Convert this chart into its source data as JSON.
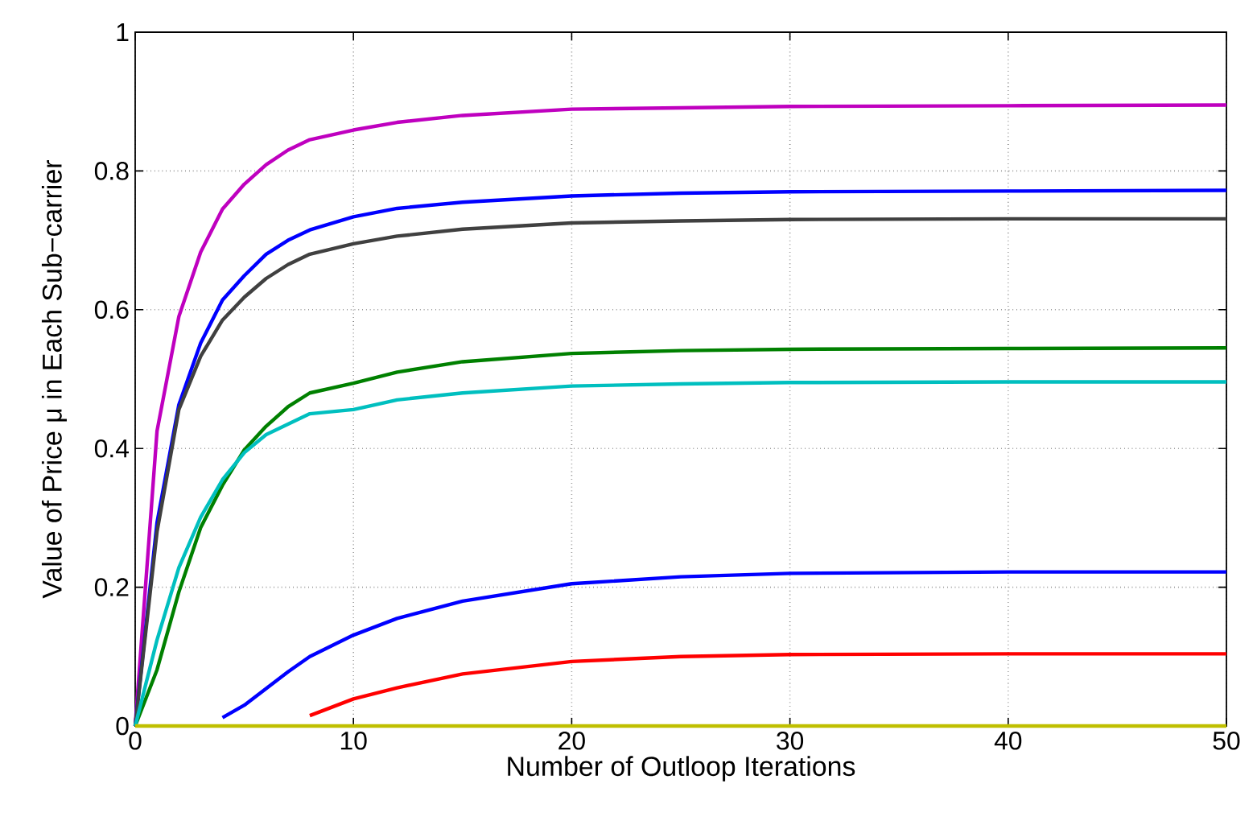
{
  "chart_data": {
    "type": "line",
    "xlabel": "Number of Outloop Iterations",
    "ylabel": "Value of Price μ in Each Sub−carrier",
    "x": [
      0,
      1,
      2,
      3,
      4,
      5,
      6,
      7,
      8,
      10,
      12,
      15,
      20,
      25,
      30,
      40,
      50
    ],
    "series": [
      {
        "color": "#bf00bf",
        "values": [
          0,
          0.425,
          0.59,
          0.683,
          0.745,
          0.781,
          0.809,
          0.83,
          0.845,
          0.859,
          0.87,
          0.88,
          0.889,
          0.891,
          0.893,
          0.894,
          0.895
        ]
      },
      {
        "color": "#0000ff",
        "values": [
          0,
          0.293,
          0.463,
          0.552,
          0.614,
          0.649,
          0.68,
          0.7,
          0.715,
          0.734,
          0.746,
          0.755,
          0.764,
          0.768,
          0.77,
          0.771,
          0.772
        ]
      },
      {
        "color": "#404040",
        "values": [
          0,
          0.28,
          0.456,
          0.533,
          0.585,
          0.618,
          0.645,
          0.665,
          0.68,
          0.695,
          0.706,
          0.716,
          0.725,
          0.728,
          0.73,
          0.731,
          0.731
        ]
      },
      {
        "color": "#008000",
        "values": [
          0,
          0.081,
          0.193,
          0.286,
          0.347,
          0.398,
          0.432,
          0.46,
          0.48,
          0.494,
          0.51,
          0.525,
          0.537,
          0.541,
          0.543,
          0.544,
          0.545
        ]
      },
      {
        "color": "#00bfbf",
        "values": [
          0,
          0.124,
          0.228,
          0.301,
          0.355,
          0.394,
          0.42,
          0.435,
          0.45,
          0.456,
          0.47,
          0.48,
          0.49,
          0.493,
          0.495,
          0.496,
          0.496
        ]
      },
      {
        "color": "#0000ff",
        "x": [
          4,
          5,
          6,
          7,
          8,
          10,
          12,
          15,
          20,
          25,
          30,
          40,
          50
        ],
        "values": [
          0.012,
          0.03,
          0.054,
          0.078,
          0.1,
          0.131,
          0.155,
          0.18,
          0.205,
          0.215,
          0.22,
          0.222,
          0.222
        ]
      },
      {
        "color": "#ff0000",
        "x": [
          8,
          10,
          12,
          15,
          20,
          25,
          30,
          40,
          50
        ],
        "values": [
          0.015,
          0.039,
          0.055,
          0.075,
          0.093,
          0.1,
          0.103,
          0.104,
          0.104
        ]
      },
      {
        "color": "#bfbf00",
        "values": [
          0,
          0,
          0,
          0,
          0,
          0,
          0,
          0,
          0,
          0,
          0,
          0,
          0,
          0,
          0,
          0,
          0
        ]
      }
    ],
    "xlim": [
      0,
      50
    ],
    "ylim": [
      0,
      1
    ],
    "xticks": [
      0,
      10,
      20,
      30,
      40,
      50
    ],
    "yticks": [
      0,
      0.2,
      0.4,
      0.6,
      0.8,
      1
    ],
    "grid": true,
    "marker": "none",
    "line_style": "solid"
  }
}
